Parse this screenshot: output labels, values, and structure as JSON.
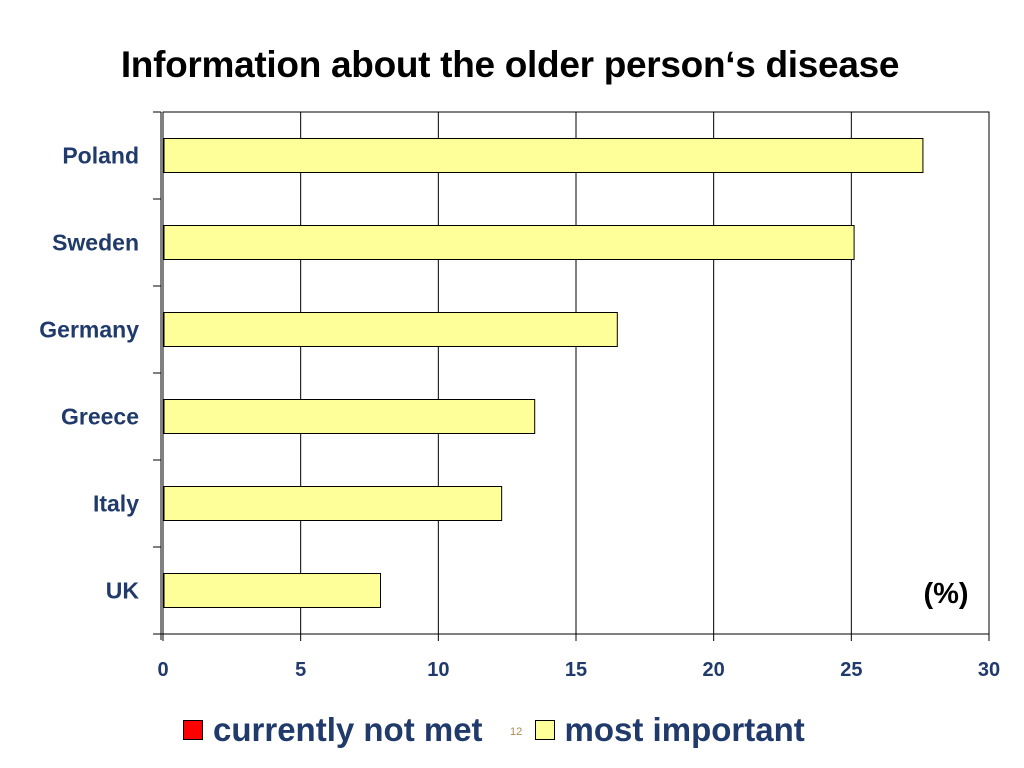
{
  "title": "Information about the older person‘s disease",
  "unit_label": "(%)",
  "page_number": "12",
  "chart_data": {
    "type": "bar",
    "orientation": "horizontal",
    "categories": [
      "Poland",
      "Sweden",
      "Germany",
      "Greece",
      "Italy",
      "UK"
    ],
    "series": [
      {
        "name": "most important",
        "color": "#ffff99",
        "values": [
          27.6,
          25.1,
          16.5,
          13.5,
          12.3,
          7.9
        ]
      }
    ],
    "xlim": [
      0,
      30
    ],
    "xticks": [
      0,
      5,
      10,
      15,
      20,
      25,
      30
    ],
    "grid": true,
    "legend_position": "bottom",
    "legend": [
      {
        "label": "currently not met",
        "color": "#ff0000"
      },
      {
        "label": "most important",
        "color": "#ffff99"
      }
    ]
  }
}
